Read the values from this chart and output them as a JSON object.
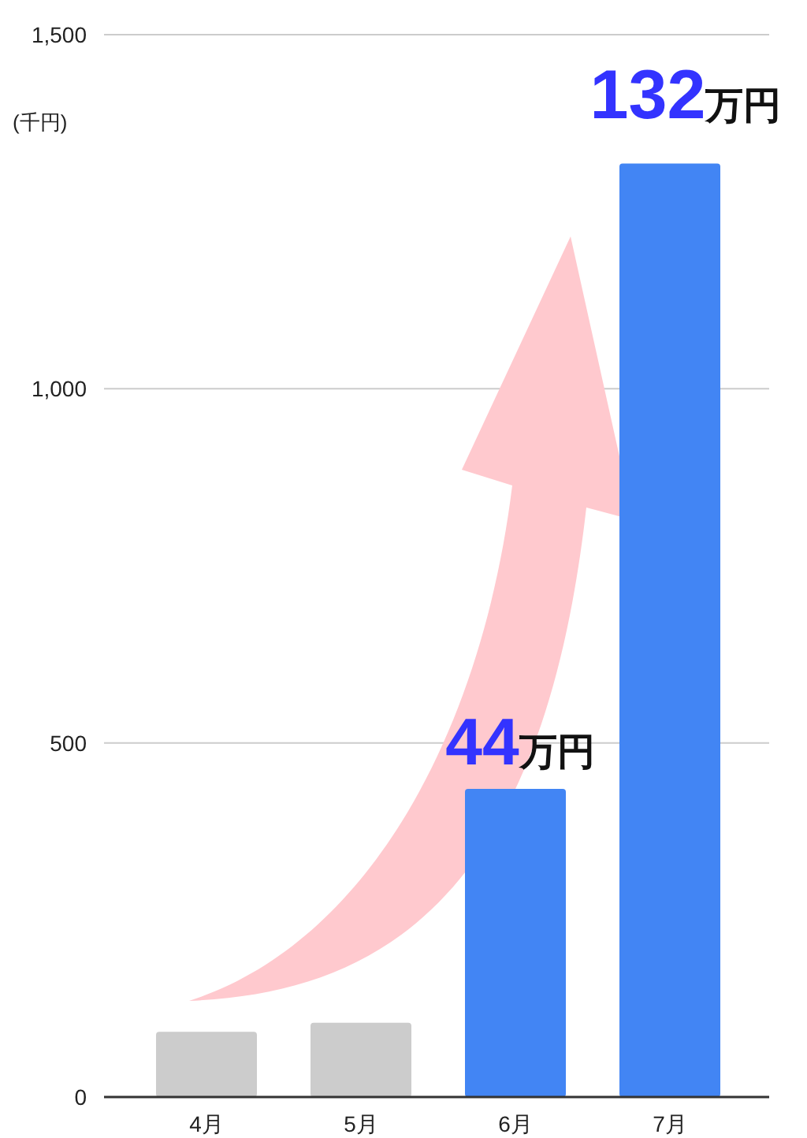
{
  "chart_data": {
    "type": "bar",
    "ylabel": "(千円)",
    "categories": [
      "4月",
      "5月",
      "6月",
      "7月"
    ],
    "values": [
      92,
      105,
      435,
      1318
    ],
    "colors": [
      "#cccccc",
      "#cccccc",
      "#4285f4",
      "#4285f4"
    ],
    "ylim": [
      0,
      1500
    ],
    "yticks": [
      0,
      500,
      {
        "value": 1000,
        "label": "1,000"
      },
      {
        "value": 1500,
        "label": "1,500"
      }
    ],
    "grid": "y",
    "annotations": [
      "132万円",
      "44万円"
    ]
  }
}
